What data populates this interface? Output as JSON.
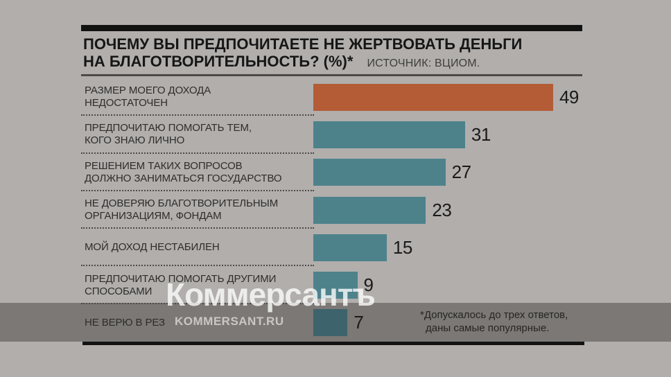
{
  "header": {
    "title_line1": "ПОЧЕМУ ВЫ ПРЕДПОЧИТАЕТЕ НЕ ЖЕРТВОВАТЬ ДЕНЬГИ",
    "title_line2": "НА БЛАГОТВОРИТЕЛЬНОСТЬ? (%)*",
    "source": "ИСТОЧНИК: ВЦИОМ."
  },
  "chart_data": {
    "type": "bar",
    "orientation": "horizontal",
    "unit": "%",
    "title": "ПОЧЕМУ ВЫ ПРЕДПОЧИТАЕТЕ НЕ ЖЕРТВОВАТЬ ДЕНЬГИ НА БЛАГОТВОРИТЕЛЬНОСТЬ? (%)",
    "source": "ВЦИОМ",
    "xlim": [
      0,
      52
    ],
    "grid": false,
    "legend": false,
    "categories": [
      [
        "РАЗМЕР МОЕГО ДОХОДА",
        "НЕДОСТАТОЧЕН"
      ],
      [
        "ПРЕДПОЧИТАЮ ПОМОГАТЬ ТЕМ,",
        "КОГО ЗНАЮ ЛИЧНО"
      ],
      [
        "РЕШЕНИЕМ ТАКИХ ВОПРОСОВ",
        "ДОЛЖНО ЗАНИМАТЬСЯ ГОСУДАРСТВО"
      ],
      [
        "НЕ ДОВЕРЯЮ БЛАГОТВОРИТЕЛЬНЫМ",
        "ОРГАНИЗАЦИЯМ, ФОНДАМ"
      ],
      [
        "МОЙ ДОХОД НЕСТАБИЛЕН"
      ],
      [
        "ПРЕДПОЧИТАЮ ПОМОГАТЬ ДРУГИМИ",
        "СПОСОБАМИ"
      ],
      [
        "НЕ ВЕРЮ В РЕЗ"
      ]
    ],
    "values": [
      49,
      31,
      27,
      23,
      15,
      9,
      7
    ],
    "colors": {
      "highlight_first_bar": "#b35c36",
      "default_bar": "#4d828b",
      "last_bar": "#3d636c"
    },
    "note": "last category label partially obscured by watermark"
  },
  "footnote": {
    "line1": "*Допускалось до трех ответов,",
    "line2": "даны самые популярные."
  },
  "watermark": {
    "brand": "Коммерсантъ",
    "site": "KOMMERSANT.RU"
  }
}
